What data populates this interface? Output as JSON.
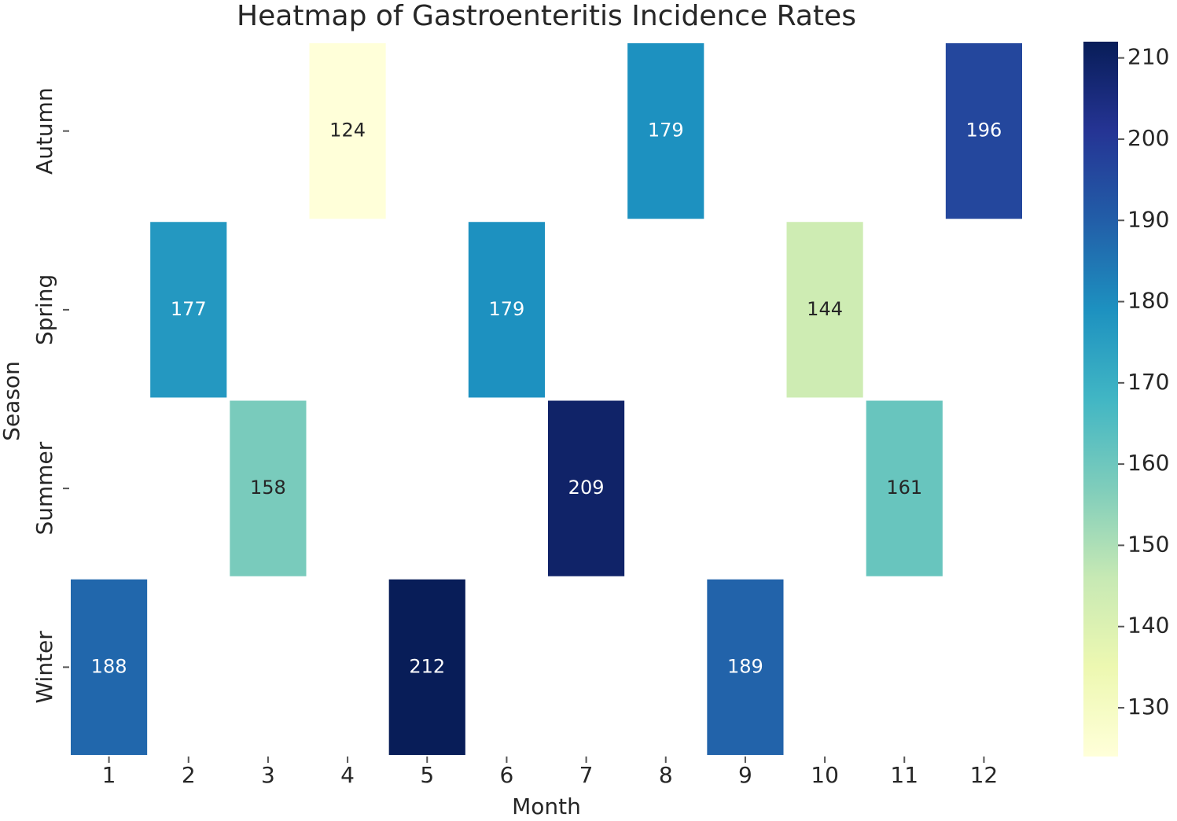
{
  "chart_data": {
    "type": "heatmap",
    "title": "Heatmap of Gastroenteritis Incidence Rates",
    "x_label": "Month",
    "y_label": "Season",
    "x_categories": [
      1,
      2,
      3,
      4,
      5,
      6,
      7,
      8,
      9,
      10,
      11,
      12
    ],
    "y_categories": [
      "Autumn",
      "Spring",
      "Summer",
      "Winter"
    ],
    "values": [
      [
        null,
        null,
        null,
        124,
        null,
        null,
        null,
        179,
        null,
        null,
        null,
        196
      ],
      [
        null,
        177,
        null,
        null,
        null,
        179,
        null,
        null,
        null,
        144,
        null,
        null
      ],
      [
        null,
        null,
        158,
        null,
        null,
        null,
        209,
        null,
        null,
        null,
        161,
        null
      ],
      [
        188,
        null,
        null,
        null,
        212,
        null,
        null,
        null,
        189,
        null,
        null,
        null
      ]
    ],
    "colormap": "YlGnBu",
    "clim": [
      124,
      212
    ],
    "cticks": [
      130,
      140,
      150,
      160,
      170,
      180,
      190,
      200,
      210
    ]
  }
}
